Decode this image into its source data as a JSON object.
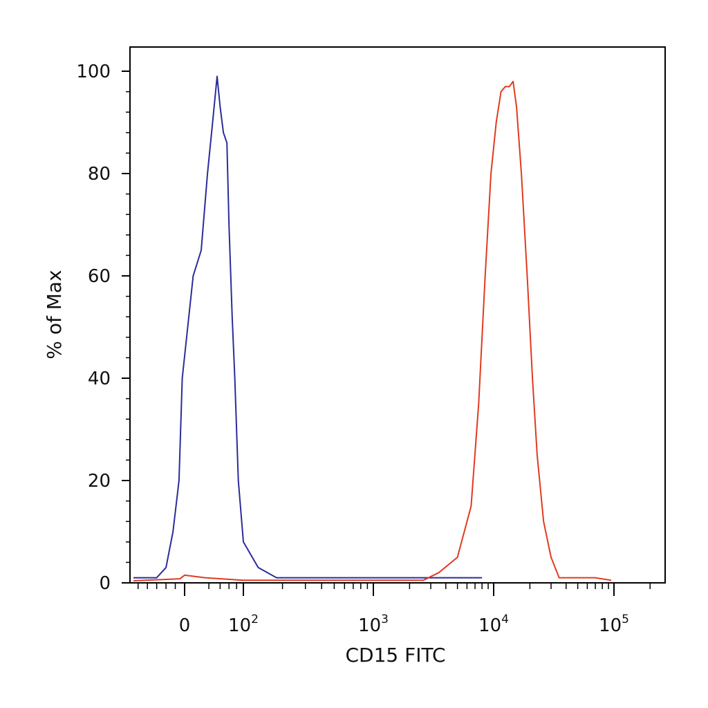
{
  "chart_data": {
    "type": "line",
    "title": "",
    "xlabel": "CD15 FITC",
    "ylabel": "% of Max",
    "x_scale": "biexponential",
    "ylim": [
      0,
      100
    ],
    "y_ticks": [
      {
        "value": 0,
        "label": "0"
      },
      {
        "value": 20,
        "label": "20"
      },
      {
        "value": 40,
        "label": "40"
      },
      {
        "value": 60,
        "label": "60"
      },
      {
        "value": 80,
        "label": "80"
      },
      {
        "value": 100,
        "label": "100"
      }
    ],
    "x_ticks": [
      {
        "value": 0,
        "label": "0",
        "exp": ""
      },
      {
        "value": 100,
        "label": "10",
        "exp": "2"
      },
      {
        "value": 1000,
        "label": "10",
        "exp": "3"
      },
      {
        "value": 10000,
        "label": "10",
        "exp": "4"
      },
      {
        "value": 100000,
        "label": "10",
        "exp": "5"
      }
    ],
    "grid": false,
    "series": [
      {
        "color": "#2b2b9a",
        "points": [
          [
            -110,
            1
          ],
          [
            -60,
            1
          ],
          [
            -40,
            3
          ],
          [
            -25,
            10
          ],
          [
            -12,
            20
          ],
          [
            -5,
            40
          ],
          [
            3,
            60
          ],
          [
            10,
            65
          ],
          [
            18,
            80
          ],
          [
            26,
            90
          ],
          [
            34,
            99
          ],
          [
            40,
            93
          ],
          [
            47,
            88
          ],
          [
            55,
            86
          ],
          [
            60,
            70
          ],
          [
            68,
            52
          ],
          [
            75,
            40
          ],
          [
            85,
            20
          ],
          [
            100,
            8
          ],
          [
            130,
            3
          ],
          [
            180,
            1
          ],
          [
            300,
            1
          ],
          [
            1000,
            1
          ],
          [
            3000,
            1
          ],
          [
            8000,
            1
          ]
        ]
      },
      {
        "color": "#e03a1e",
        "points": [
          [
            -110,
            0.4
          ],
          [
            -10,
            0.8
          ],
          [
            0,
            1.5
          ],
          [
            15,
            1
          ],
          [
            100,
            0.5
          ],
          [
            2600,
            0.5
          ],
          [
            3500,
            2
          ],
          [
            5000,
            5
          ],
          [
            6500,
            15
          ],
          [
            7500,
            35
          ],
          [
            8500,
            60
          ],
          [
            9500,
            80
          ],
          [
            10500,
            90
          ],
          [
            11500,
            96
          ],
          [
            12500,
            97
          ],
          [
            13500,
            97
          ],
          [
            14500,
            98
          ],
          [
            15500,
            93
          ],
          [
            17000,
            80
          ],
          [
            19000,
            60
          ],
          [
            21000,
            40
          ],
          [
            23000,
            25
          ],
          [
            26000,
            12
          ],
          [
            30000,
            5
          ],
          [
            35000,
            1
          ],
          [
            45000,
            1
          ],
          [
            70000,
            1
          ],
          [
            95000,
            0.5
          ]
        ]
      }
    ]
  }
}
